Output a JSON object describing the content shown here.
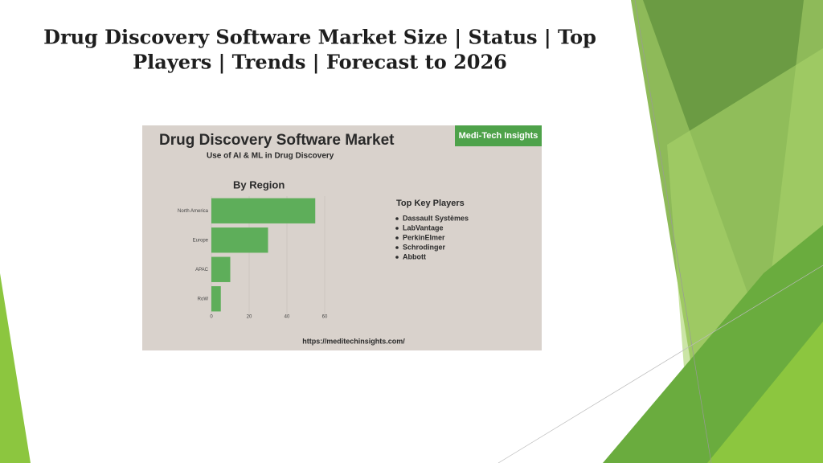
{
  "slide": {
    "title_lines": [
      "Drug Discovery Software Market Size | Status | Top",
      "Players | Trends | Forecast to 2026"
    ]
  },
  "image": {
    "heading": "Drug Discovery Software Market",
    "subheading": "Use of AI & ML in Drug Discovery",
    "brand": "Medi-Tech Insights",
    "players_title": "Top Key Players",
    "players": [
      "Dassault Systèmes",
      "LabVantage",
      "PerkinElmer",
      "Schrodinger",
      "Abbott"
    ],
    "url": "https://meditechinsights.com/"
  },
  "chart_data": {
    "type": "hbar",
    "title": "By Region",
    "categories": [
      "North America",
      "Europe",
      "APAC",
      "RoW"
    ],
    "values": [
      55,
      30,
      10,
      5
    ],
    "color": "#5eae5a",
    "xlim": [
      0,
      60
    ],
    "xticks": [
      0,
      20,
      40,
      60
    ],
    "grid": true
  }
}
